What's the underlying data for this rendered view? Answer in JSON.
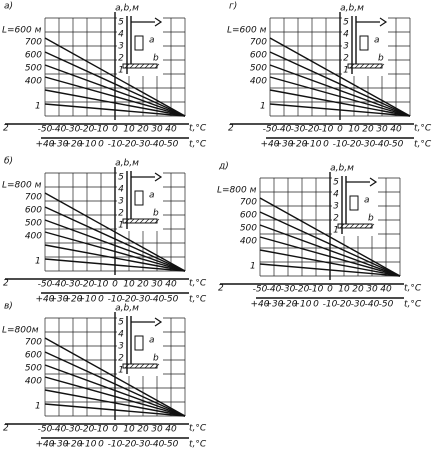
{
  "panels": [
    {
      "label": "а)",
      "y_axis": "a,b,м",
      "L_label": "L=600 м",
      "curve_labels": [
        "700",
        "600",
        "500",
        "400"
      ],
      "scale_labels": [
        "5",
        "4",
        "3",
        "2",
        "1"
      ],
      "inset_labels": [
        "a",
        "b"
      ],
      "line_label": "1",
      "row1_index": "2",
      "row1": [
        "-50",
        "-40",
        "-30",
        "-20",
        "-10",
        "0",
        "10",
        "20",
        "30",
        "40"
      ],
      "row2": [
        "+40",
        "+30",
        "+20",
        "+10",
        "0",
        "-10",
        "-20",
        "-30",
        "-40",
        "-50"
      ],
      "unit1": "t,°C",
      "unit2": "t,°C"
    },
    {
      "label": "г)",
      "y_axis": "a,b,м",
      "L_label": "L=600 м",
      "curve_labels": [
        "700",
        "600",
        "500",
        "400"
      ],
      "scale_labels": [
        "5",
        "4",
        "3",
        "2",
        "1"
      ],
      "inset_labels": [
        "a",
        "b"
      ],
      "line_label": "1",
      "row1_index": "2",
      "row1": [
        "-50",
        "-40",
        "-30",
        "-20",
        "-10",
        "0",
        "10",
        "20",
        "30",
        "40"
      ],
      "row2": [
        "+40",
        "+30",
        "+20",
        "+10",
        "0",
        "-10",
        "-20",
        "-30",
        "-40",
        "-50"
      ],
      "unit1": "t,°C",
      "unit2": "t,°C"
    },
    {
      "label": "б)",
      "y_axis": "a,b,м",
      "L_label": "L=800 м",
      "curve_labels": [
        "700",
        "600",
        "500",
        "400"
      ],
      "scale_labels": [
        "5",
        "4",
        "3",
        "2",
        "1"
      ],
      "inset_labels": [
        "a",
        "b"
      ],
      "line_label": "1",
      "row1_index": "2",
      "row1": [
        "-50",
        "-40",
        "-30",
        "-20",
        "-10",
        "0",
        "10",
        "20",
        "30",
        "40"
      ],
      "row2": [
        "+40",
        "+30",
        "+20",
        "+10",
        "0",
        "-10",
        "-20",
        "-30",
        "-40",
        "-50"
      ],
      "unit1": "t,°C",
      "unit2": "t,°C"
    },
    {
      "label": "д)",
      "y_axis": "a,b,м",
      "L_label": "L=800 м",
      "curve_labels": [
        "700",
        "600",
        "500",
        "400"
      ],
      "scale_labels": [
        "5",
        "4",
        "3",
        "2",
        "1"
      ],
      "inset_labels": [
        "a",
        "b"
      ],
      "line_label": "1",
      "row1_index": "2",
      "row1": [
        "-50",
        "-40",
        "-30",
        "-20",
        "-10",
        "0",
        "10",
        "20",
        "30",
        "40"
      ],
      "row2": [
        "+40",
        "+30",
        "+20",
        "+10",
        "0",
        "-10",
        "-20",
        "-30",
        "-40",
        "-50"
      ],
      "unit1": "t,°C",
      "unit2": "t,°C"
    },
    {
      "label": "в)",
      "y_axis": "a,b,м",
      "L_label": "L=800м",
      "curve_labels": [
        "700",
        "600",
        "500",
        "400"
      ],
      "scale_labels": [
        "5",
        "4",
        "3",
        "2",
        "1"
      ],
      "inset_labels": [
        "a",
        "b"
      ],
      "line_label": "1",
      "row1_index": "2",
      "row1": [
        "-50",
        "-40",
        "-30",
        "-20",
        "-10",
        "0",
        "10",
        "20",
        "30",
        "40"
      ],
      "row2": [
        "+40",
        "+30",
        "+20",
        "+10",
        "0",
        "-10",
        "-20",
        "-30",
        "-40",
        "-50"
      ],
      "unit1": "t,°C",
      "unit2": "t,°C"
    }
  ]
}
